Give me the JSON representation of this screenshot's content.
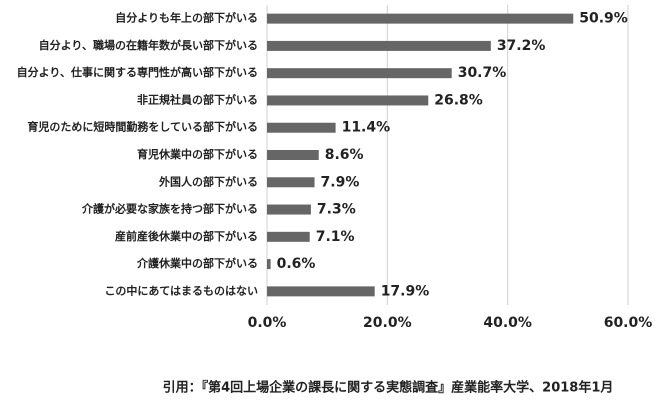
{
  "chart_data": {
    "type": "barh",
    "categories": [
      "自分よりも年上の部下がいる",
      "自分より、職場の在籍年数が長い部下がいる",
      "自分より、仕事に関する専門性が高い部下がいる",
      "非正規社員の部下がいる",
      "育児のために短時間勤務をしている部下がいる",
      "育児休業中の部下がいる",
      "外国人の部下がいる",
      "介護が必要な家族を持つ部下がいる",
      "産前産後休業中の部下がいる",
      "介護休業中の部下がいる",
      "この中にあてはまるものはない"
    ],
    "values": [
      50.9,
      37.2,
      30.7,
      26.8,
      11.4,
      8.6,
      7.9,
      7.3,
      7.1,
      0.6,
      17.9
    ],
    "value_labels": [
      "50.9%",
      "37.2%",
      "30.7%",
      "26.8%",
      "11.4%",
      "8.6%",
      "7.9%",
      "7.3%",
      "7.1%",
      "0.6%",
      "17.9%"
    ],
    "color": "#666666",
    "xlim": [
      0,
      60
    ],
    "xticks": [
      {
        "value": 0,
        "label": "0.0%"
      },
      {
        "value": 20,
        "label": "20.0%"
      },
      {
        "value": 40,
        "label": "40.0%"
      },
      {
        "value": 60,
        "label": "60.0%"
      }
    ],
    "grid": true,
    "source": "引用：『第4回上場企業の課長に関する実態調査』産業能率大学、2018年1月"
  }
}
